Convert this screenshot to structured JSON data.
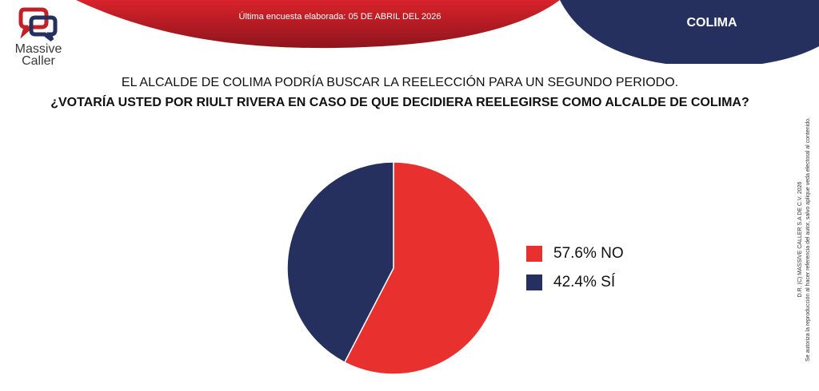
{
  "header": {
    "survey_date": "Última encuesta elaborada: 05 DE ABRIL DEL 2026",
    "region": "COLIMA"
  },
  "logo": {
    "line1": "Massive",
    "line2": "Caller",
    "icon": "speech-bubbles-logo-icon"
  },
  "question": {
    "line1": "EL ALCALDE DE COLIMA PODRÍA BUSCAR LA REELECCIÓN PARA UN SEGUNDO PERIODO.",
    "line2": "¿VOTARÍA USTED POR RIULT RIVERA EN CASO DE QUE DECIDIERA REELEGIRSE COMO ALCALDE DE COLIMA?"
  },
  "copyright": {
    "line1": "D.R. (C) MASSIVE CALLER S.A DE C.V. 2026",
    "line2": "Se autoriza la reproducción al hacer referencia del autor, salvo aplique veda electoral al contenido."
  },
  "colors": {
    "no": "#e8302e",
    "si": "#25305e",
    "header_red": "#c41f26",
    "header_navy": "#25305e"
  },
  "chart_data": {
    "type": "pie",
    "slices": [
      {
        "label": "57.6% NO",
        "value": 57.6,
        "color": "#e8302e"
      },
      {
        "label": "42.4% SÍ",
        "value": 42.4,
        "color": "#25305e"
      }
    ],
    "start_angle_deg": 0,
    "direction": "clockwise",
    "legend_position": "right"
  }
}
